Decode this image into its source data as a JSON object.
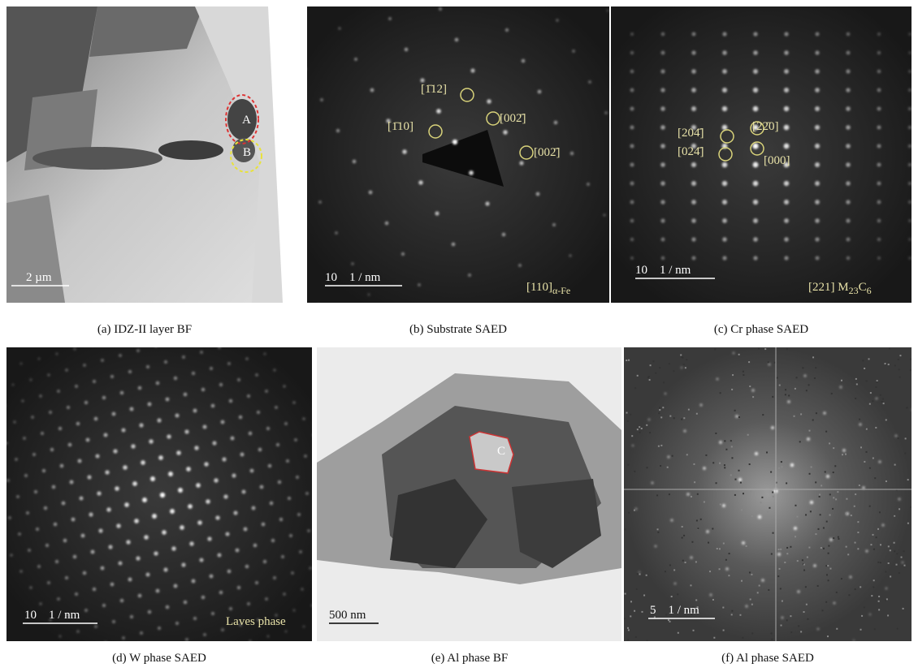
{
  "panels": [
    {
      "caption": "(a) IDZ-II layer BF",
      "scale_bar": "2 µm",
      "labels": [
        "A",
        "B"
      ]
    },
    {
      "caption": "(b) Substrate SAED",
      "scale_bar": "10    1 / nm",
      "labels": [
        "[1̄12]",
        "[002̄]",
        "[1̄10]",
        "[002̄]"
      ],
      "zone": [
        "[110]",
        "α-Fe"
      ]
    },
    {
      "caption": "(c) Cr phase SAED",
      "scale_bar": "10    1 / nm",
      "labels": [
        "[204̄]",
        "[22̄0]",
        "[024̄]",
        "[000]"
      ],
      "zone": [
        "[221] M",
        "23",
        "C",
        "6"
      ]
    },
    {
      "caption": "(d) W phase SAED",
      "scale_bar": "10    1 / nm",
      "zone": [
        "Laves phase"
      ]
    },
    {
      "caption": "(e) Al phase BF",
      "scale_bar": "500 nm",
      "labels": [
        "C"
      ]
    },
    {
      "caption": "(f) Al phase SAED",
      "scale_bar": "5    1 / nm"
    }
  ]
}
